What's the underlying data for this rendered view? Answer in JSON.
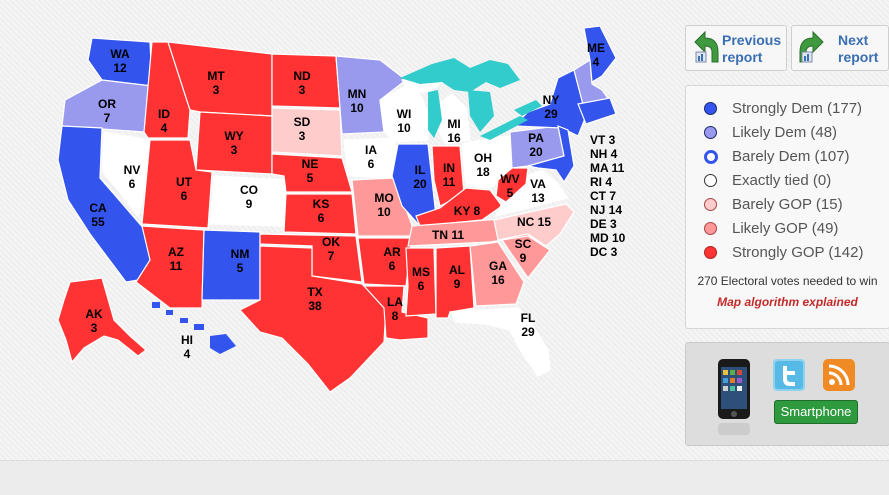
{
  "nav": {
    "previous": {
      "line1": "Previous",
      "line2": "report"
    },
    "next": {
      "line1": "Next",
      "line2": "report"
    }
  },
  "legend": {
    "items": [
      {
        "label": "Strongly Dem (177)",
        "color": "#3355ee"
      },
      {
        "label": "Likely Dem (48)",
        "color": "#9999ee"
      },
      {
        "label": "Barely Dem (107)",
        "color": "#ffffff"
      },
      {
        "label": "Exactly tied (0)",
        "color": "#ffffff"
      },
      {
        "label": "Barely GOP (15)",
        "color": "#ffcccc"
      },
      {
        "label": "Likely GOP (49)",
        "color": "#ff9999"
      },
      {
        "label": "Strongly GOP (142)",
        "color": "#ff3333"
      }
    ],
    "note": "270 Electoral votes needed to win",
    "algorithm_link": "Map algorithm explained"
  },
  "promo": {
    "smartphone_label": "Smartphone",
    "icons": [
      "iphone-icon",
      "twitter-icon",
      "rss-icon"
    ]
  },
  "map": {
    "colors": {
      "strong_dem": "#3355ee",
      "likely_dem": "#9999ee",
      "barely_dem_fill": "#ffffff",
      "barely_dem_border": "#3355ee",
      "barely_gop": "#ffcccc",
      "likely_gop": "#ff9999",
      "strong_gop": "#ff3333",
      "lakes": "#33cccc"
    },
    "labels": {
      "WA": [
        "WA",
        "12"
      ],
      "OR": [
        "OR",
        "7"
      ],
      "CA": [
        "CA",
        "55"
      ],
      "NV": [
        "NV",
        "6"
      ],
      "ID": [
        "ID",
        "4"
      ],
      "MT": [
        "MT",
        "3"
      ],
      "WY": [
        "WY",
        "3"
      ],
      "UT": [
        "UT",
        "6"
      ],
      "CO": [
        "CO",
        "9"
      ],
      "AZ": [
        "AZ",
        "11"
      ],
      "NM": [
        "NM",
        "5"
      ],
      "ND": [
        "ND",
        "3"
      ],
      "SD": [
        "SD",
        "3"
      ],
      "NE": [
        "NE",
        "5"
      ],
      "KS": [
        "KS",
        "6"
      ],
      "OK": [
        "OK",
        "7"
      ],
      "TX": [
        "TX",
        "38"
      ],
      "MN": [
        "MN",
        "10"
      ],
      "IA": [
        "IA",
        "6"
      ],
      "MO": [
        "MO",
        "10"
      ],
      "AR": [
        "AR",
        "6"
      ],
      "LA": [
        "LA",
        "8"
      ],
      "WI": [
        "WI",
        "10"
      ],
      "IL": [
        "IL",
        "20"
      ],
      "MI": [
        "MI",
        "16"
      ],
      "IN": [
        "IN",
        "11"
      ],
      "OH": [
        "OH",
        "18"
      ],
      "KY": [
        "KY 8"
      ],
      "TN": [
        "TN 11"
      ],
      "MS": [
        "MS",
        "6"
      ],
      "AL": [
        "AL",
        "9"
      ],
      "GA": [
        "GA",
        "16"
      ],
      "FL": [
        "FL",
        "29"
      ],
      "SC": [
        "SC",
        "9"
      ],
      "NC": [
        "NC 15"
      ],
      "VA": [
        "VA",
        "13"
      ],
      "WV": [
        "WV",
        "5"
      ],
      "PA": [
        "PA",
        "20"
      ],
      "NY": [
        "NY",
        "29"
      ],
      "ME": [
        "ME",
        "4"
      ],
      "AK": [
        "AK",
        "3"
      ],
      "HI": [
        "HI",
        "4"
      ]
    },
    "small_states": [
      "VT 3",
      "NH 4",
      "MA 11",
      "RI 4",
      "CT 7",
      "NJ 14",
      "DE 3",
      "MD 10",
      "DC 3"
    ]
  }
}
